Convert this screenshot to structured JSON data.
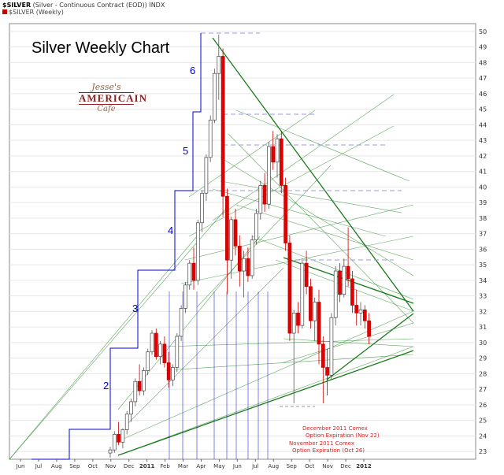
{
  "header": {
    "line1_symbol": "$SILVER",
    "line1_rest": "(Silver - Continuous Contract (EOD)) INDX",
    "line2": "$SILVER (Weekly)"
  },
  "logo": {
    "line1": "Jesse's",
    "line2": "AMERICAIN",
    "line3": "Cafe"
  },
  "colors": {
    "up_candle": "#ffffff",
    "down_candle": "#e00000",
    "wave_lines": "#0000cc",
    "fan_lines": "#2e8b2e",
    "dark_trend": "#1a7a1a",
    "resistance_dash": "#9999dd",
    "annotation_red": "#dd2222"
  },
  "chart_data": {
    "type": "candlestick",
    "title": "Silver Weekly Chart",
    "ylim": [
      22.5,
      50.5
    ],
    "y_ticks": [
      23,
      24,
      25,
      26,
      27,
      28,
      29,
      30,
      31,
      32,
      33,
      34,
      35,
      36,
      37,
      38,
      39,
      40,
      41,
      42,
      43,
      44,
      45,
      46,
      47,
      48,
      49,
      50
    ],
    "x_labels": [
      "Jun",
      "Jul",
      "Aug",
      "Sep",
      "Oct",
      "Nov",
      "Dec",
      "2011",
      "Feb",
      "Mar",
      "Apr",
      "May",
      "Jun",
      "Jul",
      "Aug",
      "Sep",
      "Oct",
      "Nov",
      "Dec",
      "2012"
    ],
    "wave_labels": [
      "2",
      "3",
      "4",
      "5",
      "6"
    ],
    "annotations": [
      "December 2011 Comex\nOption Expiration (Nov 22)",
      "November 2011 Comex\nOption Expiration (Oct 26)"
    ],
    "candles": [
      {
        "o": 22.9,
        "h": 23.3,
        "l": 22.6,
        "c": 23.1
      },
      {
        "o": 23.1,
        "h": 24.3,
        "l": 22.9,
        "c": 24.1
      },
      {
        "o": 24.1,
        "h": 24.9,
        "l": 23.4,
        "c": 23.6
      },
      {
        "o": 23.6,
        "h": 24.5,
        "l": 23.2,
        "c": 24.4
      },
      {
        "o": 24.4,
        "h": 25.6,
        "l": 24.1,
        "c": 25.4
      },
      {
        "o": 25.4,
        "h": 26.4,
        "l": 24.9,
        "c": 26.2
      },
      {
        "o": 26.2,
        "h": 27.7,
        "l": 25.9,
        "c": 27.5
      },
      {
        "o": 27.5,
        "h": 28.6,
        "l": 26.6,
        "c": 26.9
      },
      {
        "o": 26.9,
        "h": 28.4,
        "l": 26.6,
        "c": 28.2
      },
      {
        "o": 28.2,
        "h": 29.6,
        "l": 27.9,
        "c": 29.4
      },
      {
        "o": 29.4,
        "h": 30.8,
        "l": 29.2,
        "c": 30.6
      },
      {
        "o": 30.6,
        "h": 30.9,
        "l": 28.9,
        "c": 29.1
      },
      {
        "o": 29.1,
        "h": 30.1,
        "l": 28.6,
        "c": 29.9
      },
      {
        "o": 29.9,
        "h": 30.4,
        "l": 28.4,
        "c": 28.7
      },
      {
        "o": 28.7,
        "h": 29.4,
        "l": 27.1,
        "c": 27.6
      },
      {
        "o": 27.6,
        "h": 28.6,
        "l": 27.2,
        "c": 28.4
      },
      {
        "o": 28.4,
        "h": 30.6,
        "l": 28.1,
        "c": 30.4
      },
      {
        "o": 30.4,
        "h": 32.4,
        "l": 30.1,
        "c": 32.2
      },
      {
        "o": 32.2,
        "h": 33.9,
        "l": 31.9,
        "c": 33.7
      },
      {
        "o": 33.7,
        "h": 35.3,
        "l": 33.4,
        "c": 35.1
      },
      {
        "o": 35.1,
        "h": 36.1,
        "l": 33.4,
        "c": 34.0
      },
      {
        "o": 34.0,
        "h": 37.9,
        "l": 33.7,
        "c": 37.7
      },
      {
        "o": 37.7,
        "h": 39.8,
        "l": 37.1,
        "c": 39.6
      },
      {
        "o": 39.6,
        "h": 42.1,
        "l": 39.1,
        "c": 41.9
      },
      {
        "o": 41.9,
        "h": 44.6,
        "l": 41.6,
        "c": 44.3
      },
      {
        "o": 44.3,
        "h": 47.6,
        "l": 44.1,
        "c": 47.3
      },
      {
        "o": 47.3,
        "h": 49.8,
        "l": 45.6,
        "c": 48.4
      },
      {
        "o": 48.4,
        "h": 48.9,
        "l": 38.1,
        "c": 39.4
      },
      {
        "o": 39.4,
        "h": 39.9,
        "l": 33.1,
        "c": 35.3
      },
      {
        "o": 35.3,
        "h": 38.1,
        "l": 34.1,
        "c": 37.9
      },
      {
        "o": 37.9,
        "h": 38.6,
        "l": 35.6,
        "c": 36.2
      },
      {
        "o": 36.2,
        "h": 36.9,
        "l": 33.6,
        "c": 34.6
      },
      {
        "o": 34.6,
        "h": 35.9,
        "l": 32.9,
        "c": 35.4
      },
      {
        "o": 35.4,
        "h": 36.1,
        "l": 33.9,
        "c": 34.3
      },
      {
        "o": 34.3,
        "h": 36.9,
        "l": 34.1,
        "c": 36.6
      },
      {
        "o": 36.6,
        "h": 38.6,
        "l": 36.3,
        "c": 38.3
      },
      {
        "o": 38.3,
        "h": 40.4,
        "l": 37.9,
        "c": 40.1
      },
      {
        "o": 40.1,
        "h": 40.9,
        "l": 38.4,
        "c": 38.9
      },
      {
        "o": 38.9,
        "h": 42.9,
        "l": 38.6,
        "c": 42.6
      },
      {
        "o": 42.6,
        "h": 43.6,
        "l": 41.1,
        "c": 41.6
      },
      {
        "o": 41.6,
        "h": 43.4,
        "l": 40.6,
        "c": 43.1
      },
      {
        "o": 43.1,
        "h": 43.6,
        "l": 39.6,
        "c": 40.1
      },
      {
        "o": 40.1,
        "h": 40.6,
        "l": 35.9,
        "c": 36.4
      },
      {
        "o": 36.4,
        "h": 36.9,
        "l": 30.1,
        "c": 30.6
      },
      {
        "o": 30.6,
        "h": 32.1,
        "l": 26.1,
        "c": 31.9
      },
      {
        "o": 31.9,
        "h": 32.6,
        "l": 30.6,
        "c": 31.1
      },
      {
        "o": 31.1,
        "h": 35.4,
        "l": 30.9,
        "c": 35.1
      },
      {
        "o": 35.1,
        "h": 35.9,
        "l": 33.1,
        "c": 33.6
      },
      {
        "o": 33.6,
        "h": 34.1,
        "l": 30.9,
        "c": 31.4
      },
      {
        "o": 31.4,
        "h": 32.9,
        "l": 30.1,
        "c": 32.6
      },
      {
        "o": 32.6,
        "h": 33.4,
        "l": 28.6,
        "c": 29.9
      },
      {
        "o": 29.9,
        "h": 30.4,
        "l": 26.1,
        "c": 28.4
      },
      {
        "o": 28.4,
        "h": 29.6,
        "l": 26.6,
        "c": 27.9
      },
      {
        "o": 27.9,
        "h": 31.9,
        "l": 27.6,
        "c": 31.6
      },
      {
        "o": 31.6,
        "h": 34.9,
        "l": 31.1,
        "c": 34.6
      },
      {
        "o": 34.6,
        "h": 35.1,
        "l": 32.6,
        "c": 33.1
      },
      {
        "o": 33.1,
        "h": 35.4,
        "l": 32.9,
        "c": 34.9
      },
      {
        "o": 34.9,
        "h": 37.4,
        "l": 33.6,
        "c": 34.1
      },
      {
        "o": 34.1,
        "h": 34.6,
        "l": 31.9,
        "c": 32.4
      },
      {
        "o": 32.4,
        "h": 33.4,
        "l": 31.1,
        "c": 31.9
      },
      {
        "o": 31.9,
        "h": 32.6,
        "l": 31.1,
        "c": 32.1
      },
      {
        "o": 32.1,
        "h": 32.4,
        "l": 30.9,
        "c": 31.4
      },
      {
        "o": 31.4,
        "h": 31.9,
        "l": 29.9,
        "c": 30.4
      }
    ]
  }
}
